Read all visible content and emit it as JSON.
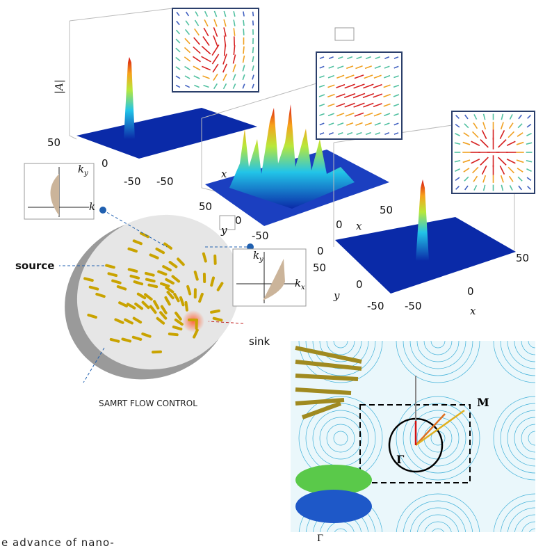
{
  "plot_a": {
    "z_label": "|A|",
    "tick_labels": [
      "50",
      "0",
      "-50",
      "-50"
    ]
  },
  "plot_b": {
    "tick_labels": [
      "x",
      "50",
      "y",
      "0",
      "-50",
      "0",
      "x",
      "50"
    ]
  },
  "plot_c": {
    "tick_labels": [
      "0",
      "50",
      "y",
      "0",
      "-50",
      "-50",
      "0",
      "50",
      "x"
    ]
  },
  "flow_diagram": {
    "left_axis_y": "k",
    "left_axis_y_sub": "y",
    "left_axis_x": "k",
    "source": "source",
    "right_axis_y": "k",
    "right_axis_y_sub": "y",
    "right_axis_x": "k",
    "right_axis_x_sub": "x",
    "sink": "sink",
    "caption": "SAMRT FLOW CONTROL"
  },
  "band_panel": {
    "m_point": "M",
    "gamma_point": "Γ",
    "inset_gamma": "Γ"
  },
  "body_text": "e advance of nano-"
}
